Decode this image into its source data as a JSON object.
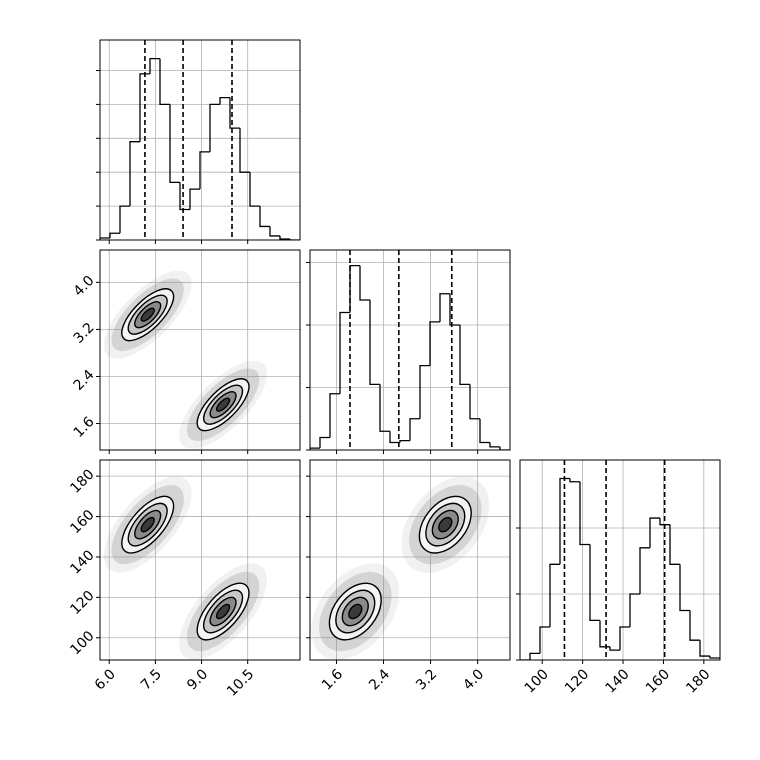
{
  "chart_data": {
    "type": "corner",
    "grid": true,
    "color": "#000000",
    "parameters": [
      {
        "lim": [
          5.7,
          12.2
        ],
        "ticks": [
          {
            "value": 6,
            "label": "6.0"
          },
          7.5,
          {
            "value": 9,
            "label": "9.0"
          },
          10.5
        ],
        "quantiles": [
          7.16,
          8.4,
          9.99
        ],
        "hist": {
          "bins": [
            5.7,
            6.025,
            6.35,
            6.675,
            7.0,
            7.325,
            7.65,
            7.975,
            8.3,
            8.625,
            8.95,
            9.275,
            9.6,
            9.925,
            10.25,
            10.575,
            10.9,
            11.225,
            11.55,
            11.875,
            12.2
          ],
          "counts": [
            0.06,
            0.2,
            1.0,
            2.9,
            4.9,
            5.35,
            4.0,
            1.7,
            0.9,
            1.5,
            2.6,
            4.0,
            4.2,
            3.3,
            2.0,
            1.0,
            0.4,
            0.12,
            0.03,
            0
          ],
          "ylim": [
            0,
            5.9
          ],
          "yticks": [
            0,
            1,
            2,
            3,
            4,
            5
          ]
        }
      },
      {
        "lim": [
          1.15,
          4.55
        ],
        "ticks": [
          1.6,
          2.4,
          3.2,
          {
            "value": 4,
            "label": "4.0"
          }
        ],
        "quantiles": [
          1.83,
          2.66,
          3.56
        ],
        "hist": {
          "bins": [
            1.15,
            1.32,
            1.49,
            1.66,
            1.83,
            2.0,
            2.17,
            2.34,
            2.51,
            2.68,
            2.85,
            3.02,
            3.19,
            3.36,
            3.53,
            3.7,
            3.87,
            4.04,
            4.21,
            4.38,
            4.55
          ],
          "counts": [
            0.03,
            0.2,
            0.9,
            2.2,
            2.95,
            2.4,
            1.05,
            0.3,
            0.12,
            0.15,
            0.5,
            1.35,
            2.05,
            2.5,
            2.0,
            1.05,
            0.5,
            0.12,
            0.05,
            0
          ],
          "ylim": [
            0,
            3.2
          ],
          "yticks": [
            0,
            1,
            2,
            3
          ]
        }
      },
      {
        "lim": [
          89,
          188
        ],
        "ticks": [
          100,
          120,
          140,
          160,
          180
        ],
        "quantiles": [
          111,
          131.6,
          160.6
        ],
        "hist": {
          "bins": [
            89,
            93.95,
            98.9,
            103.85,
            108.8,
            113.75,
            118.7,
            123.65,
            128.6,
            133.55,
            138.5,
            143.45,
            148.4,
            153.35,
            158.3,
            163.25,
            168.2,
            173.15,
            178.1,
            183.05,
            188
          ],
          "counts": [
            0,
            0.1,
            0.5,
            1.45,
            2.75,
            2.7,
            1.75,
            0.6,
            0.2,
            0.15,
            0.5,
            1.0,
            1.7,
            2.15,
            2.05,
            1.45,
            0.75,
            0.3,
            0.06,
            0.03
          ],
          "ylim": [
            0,
            3.03
          ],
          "yticks": [
            0,
            1,
            2
          ]
        }
      }
    ],
    "modes": [
      {
        "mean": [
          7.25,
          3.45,
          156
        ],
        "std": [
          0.42,
          0.22,
          7
        ],
        "correlation": [
          [
            1,
            0.7,
            0.65
          ],
          [
            0.7,
            1,
            0.4
          ],
          [
            0.65,
            0.4,
            1
          ]
        ]
      },
      {
        "mean": [
          9.7,
          1.92,
          113
        ],
        "std": [
          0.42,
          0.22,
          7
        ],
        "correlation": [
          [
            1,
            0.7,
            0.65
          ],
          [
            0.7,
            1,
            0.4
          ],
          [
            0.65,
            0.4,
            1
          ]
        ]
      }
    ],
    "contour_levels": [
      0.5,
      1,
      1.5,
      2
    ]
  }
}
